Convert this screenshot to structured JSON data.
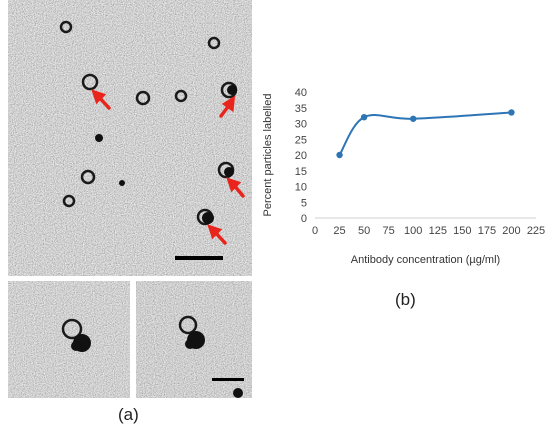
{
  "panel_a": {
    "caption": "(a)"
  },
  "panel_b": {
    "caption": "(b)"
  },
  "chart_data": {
    "type": "line",
    "title": "",
    "xlabel": "Antibody concentration (µg/ml)",
    "ylabel": "Percent particles labelled",
    "xlim": [
      0,
      225
    ],
    "ylim": [
      0,
      40
    ],
    "x_ticks": [
      "0",
      "25",
      "50",
      "75",
      "100",
      "125",
      "150",
      "175",
      "200",
      "225"
    ],
    "y_ticks": [
      "0",
      "5",
      "10",
      "15",
      "20",
      "25",
      "30",
      "35",
      "40"
    ],
    "grid": false,
    "smooth": true,
    "series": [
      {
        "x": [
          25,
          50,
          100,
          200
        ],
        "values": [
          20,
          32,
          31.5,
          33.5
        ],
        "color": "#2e75b6"
      }
    ]
  }
}
